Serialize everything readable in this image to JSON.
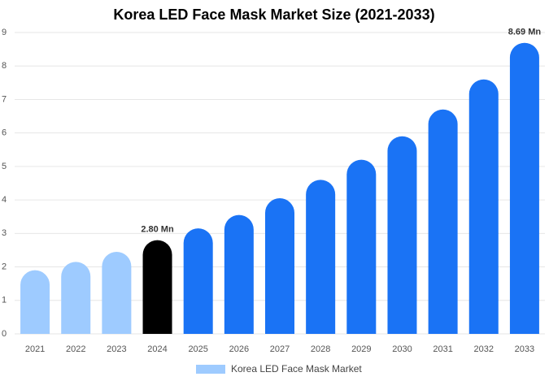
{
  "chart_data": {
    "type": "bar",
    "title": "Korea LED Face Mask Market Size (2021-2033)",
    "categories": [
      "2021",
      "2022",
      "2023",
      "2024",
      "2025",
      "2026",
      "2027",
      "2028",
      "2029",
      "2030",
      "2031",
      "2032",
      "2033"
    ],
    "series": [
      {
        "name": "Korea LED Face Mask Market",
        "color": "#9ecbff",
        "colors": [
          "#9ecbff",
          "#9ecbff",
          "#9ecbff",
          "#000000",
          "#1a73f5",
          "#1a73f5",
          "#1a73f5",
          "#1a73f5",
          "#1a73f5",
          "#1a73f5",
          "#1a73f5",
          "#1a73f5",
          "#1a73f5"
        ],
        "values": [
          1.9,
          2.15,
          2.45,
          2.8,
          3.15,
          3.55,
          4.05,
          4.6,
          5.2,
          5.9,
          6.7,
          7.6,
          8.69
        ],
        "value_labels": [
          null,
          null,
          null,
          "2.80 Mn",
          null,
          null,
          null,
          null,
          null,
          null,
          null,
          null,
          "8.69 Mn"
        ]
      }
    ],
    "ylim": [
      0,
      9
    ],
    "yticks": [
      0,
      1,
      2,
      3,
      4,
      5,
      6,
      7,
      8,
      9
    ],
    "grid": true
  }
}
